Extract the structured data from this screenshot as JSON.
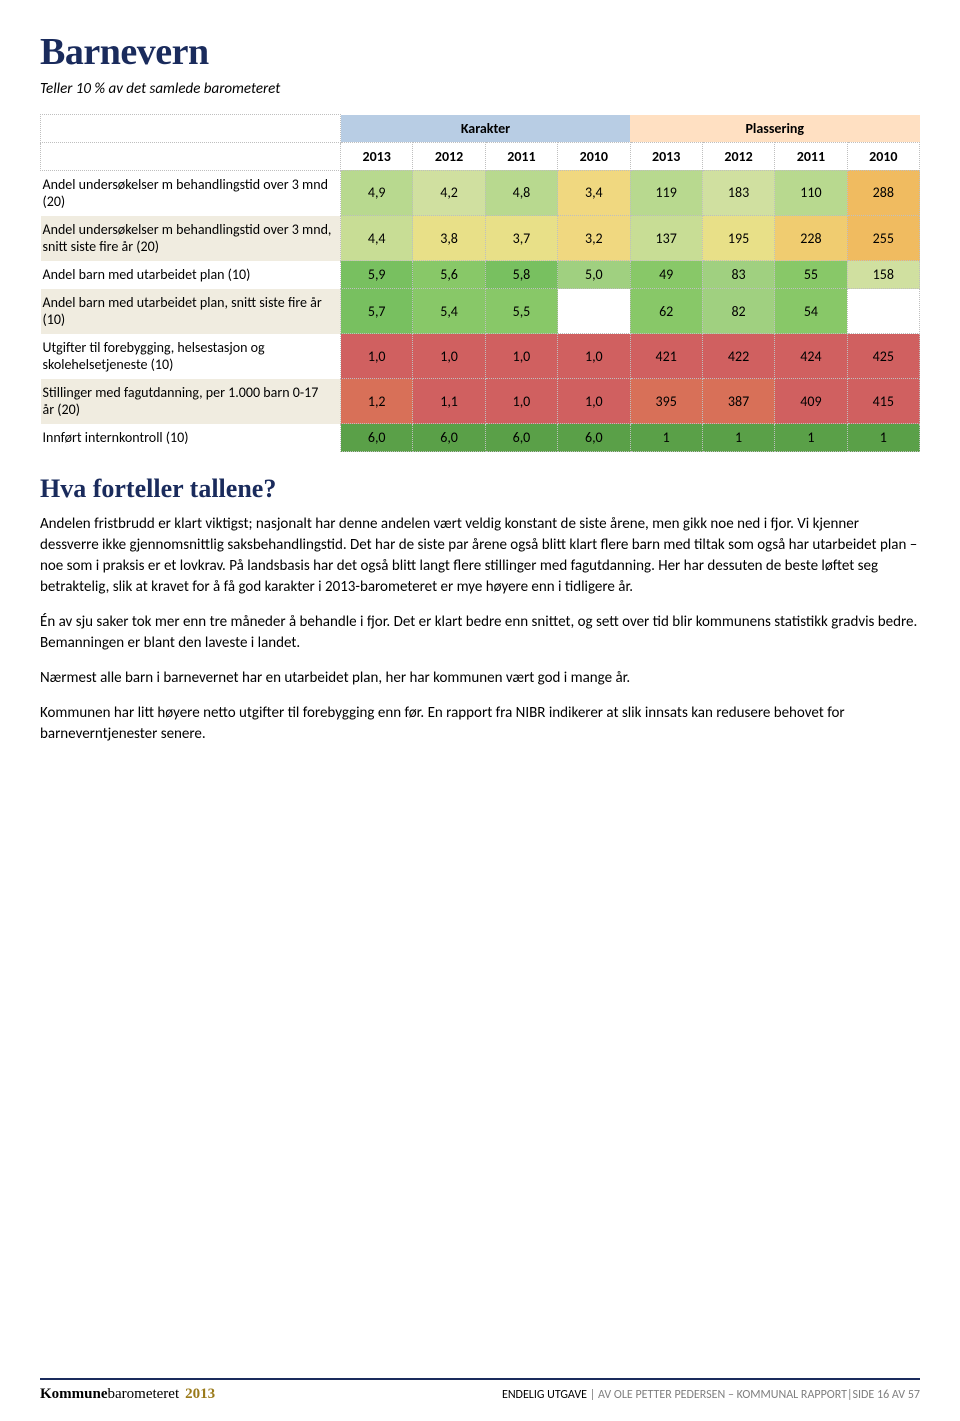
{
  "page": {
    "title": "Barnevern",
    "subtitle": "Teller 10 % av det samlede barometeret",
    "section_title": "Hva forteller tallene?"
  },
  "table": {
    "group_headers": [
      "Karakter",
      "Plassering"
    ],
    "year_headers": [
      "2013",
      "2012",
      "2011",
      "2010",
      "2013",
      "2012",
      "2011",
      "2010"
    ],
    "header_colors": {
      "karakter_bg": "#b8cde4",
      "plassering_bg": "#ffe0c2"
    },
    "rows": [
      {
        "label": "Andel undersøkelser m behandlingstid over 3 mnd (20)",
        "alt": false,
        "cells": [
          {
            "v": "4,9",
            "bg": "#b8d98f"
          },
          {
            "v": "4,2",
            "bg": "#d0e0a0"
          },
          {
            "v": "4,8",
            "bg": "#b8d98f"
          },
          {
            "v": "3,4",
            "bg": "#f0d880"
          },
          {
            "v": "119",
            "bg": "#b8d98f"
          },
          {
            "v": "183",
            "bg": "#d0e0a0"
          },
          {
            "v": "110",
            "bg": "#b8d98f"
          },
          {
            "v": "288",
            "bg": "#f0bb60"
          }
        ]
      },
      {
        "label": "Andel undersøkelser m behandlingstid over 3 mnd, snitt siste fire år (20)",
        "alt": true,
        "cells": [
          {
            "v": "4,4",
            "bg": "#c8dd95"
          },
          {
            "v": "3,8",
            "bg": "#e8e088"
          },
          {
            "v": "3,7",
            "bg": "#e8e088"
          },
          {
            "v": "3,2",
            "bg": "#f0d880"
          },
          {
            "v": "137",
            "bg": "#c8dd95"
          },
          {
            "v": "195",
            "bg": "#e8e088"
          },
          {
            "v": "228",
            "bg": "#f0cc70"
          },
          {
            "v": "255",
            "bg": "#f0bb60"
          }
        ]
      },
      {
        "label": "Andel barn med utarbeidet plan (10)",
        "alt": false,
        "cells": [
          {
            "v": "5,9",
            "bg": "#78c060"
          },
          {
            "v": "5,6",
            "bg": "#88c868"
          },
          {
            "v": "5,8",
            "bg": "#78c060"
          },
          {
            "v": "5,0",
            "bg": "#a0d080"
          },
          {
            "v": "49",
            "bg": "#88c868"
          },
          {
            "v": "83",
            "bg": "#a0d080"
          },
          {
            "v": "55",
            "bg": "#88c868"
          },
          {
            "v": "158",
            "bg": "#d0e0a0"
          }
        ]
      },
      {
        "label": "Andel barn med utarbeidet plan, snitt siste fire år (10)",
        "alt": true,
        "cells": [
          {
            "v": "5,7",
            "bg": "#78c060"
          },
          {
            "v": "5,4",
            "bg": "#88c868"
          },
          {
            "v": "5,5",
            "bg": "#88c868"
          },
          {
            "v": "",
            "bg": "#ffffff"
          },
          {
            "v": "62",
            "bg": "#88c868"
          },
          {
            "v": "82",
            "bg": "#a0d080"
          },
          {
            "v": "54",
            "bg": "#88c868"
          },
          {
            "v": "",
            "bg": "#ffffff"
          }
        ]
      },
      {
        "label": "Utgifter til forebygging, helsestasjon og skolehelsetjeneste (10)",
        "alt": false,
        "cells": [
          {
            "v": "1,0",
            "bg": "#d06060"
          },
          {
            "v": "1,0",
            "bg": "#d06060"
          },
          {
            "v": "1,0",
            "bg": "#d06060"
          },
          {
            "v": "1,0",
            "bg": "#d06060"
          },
          {
            "v": "421",
            "bg": "#d06060"
          },
          {
            "v": "422",
            "bg": "#d06060"
          },
          {
            "v": "424",
            "bg": "#d06060"
          },
          {
            "v": "425",
            "bg": "#d06060"
          }
        ]
      },
      {
        "label": "Stillinger med fagutdanning, per 1.000 barn 0-17 år (20)",
        "alt": true,
        "cells": [
          {
            "v": "1,2",
            "bg": "#d87058"
          },
          {
            "v": "1,1",
            "bg": "#d06060"
          },
          {
            "v": "1,0",
            "bg": "#d06060"
          },
          {
            "v": "1,0",
            "bg": "#d06060"
          },
          {
            "v": "395",
            "bg": "#d87058"
          },
          {
            "v": "387",
            "bg": "#d87058"
          },
          {
            "v": "409",
            "bg": "#d06060"
          },
          {
            "v": "415",
            "bg": "#d06060"
          }
        ]
      },
      {
        "label": "Innført internkontroll (10)",
        "alt": false,
        "cells": [
          {
            "v": "6,0",
            "bg": "#5aa048"
          },
          {
            "v": "6,0",
            "bg": "#5aa048"
          },
          {
            "v": "6,0",
            "bg": "#5aa048"
          },
          {
            "v": "6,0",
            "bg": "#5aa048"
          },
          {
            "v": "1",
            "bg": "#5aa048"
          },
          {
            "v": "1",
            "bg": "#5aa048"
          },
          {
            "v": "1",
            "bg": "#5aa048"
          },
          {
            "v": "1",
            "bg": "#5aa048"
          }
        ]
      }
    ]
  },
  "paragraphs": [
    "Andelen fristbrudd er klart viktigst; nasjonalt har denne andelen vært veldig konstant de siste årene, men gikk noe ned i fjor. Vi kjenner dessverre ikke gjennomsnittlig saksbehandlingstid. Det har de siste par årene også blitt klart flere barn med tiltak som også har utarbeidet plan – noe som i praksis er et lovkrav. På landsbasis har det også blitt langt flere stillinger med fagutdanning. Her har dessuten de beste løftet seg betraktelig, slik at kravet for å få god karakter i 2013-barometeret er mye høyere enn i tidligere år.",
    "Én av sju saker tok mer enn tre måneder å behandle i fjor. Det er klart bedre enn snittet, og sett over tid blir kommunens statistikk gradvis bedre. Bemanningen er blant den laveste i landet.",
    "Nærmest alle barn i barnevernet har en utarbeidet plan, her har kommunen vært god i mange år.",
    "Kommunen har litt høyere netto utgifter til forebygging enn før. En rapport fra NIBR indikerer at slik innsats kan redusere behovet for barneverntjenester senere."
  ],
  "footer": {
    "brand1": "Kommune",
    "brand2": "barometeret",
    "brand_year": "2013",
    "right_black": "ENDELIG UTGAVE",
    "right_grey": " | AV OLE PETTER PEDERSEN – KOMMUNAL RAPPORT|SIDE 16 AV 57"
  }
}
